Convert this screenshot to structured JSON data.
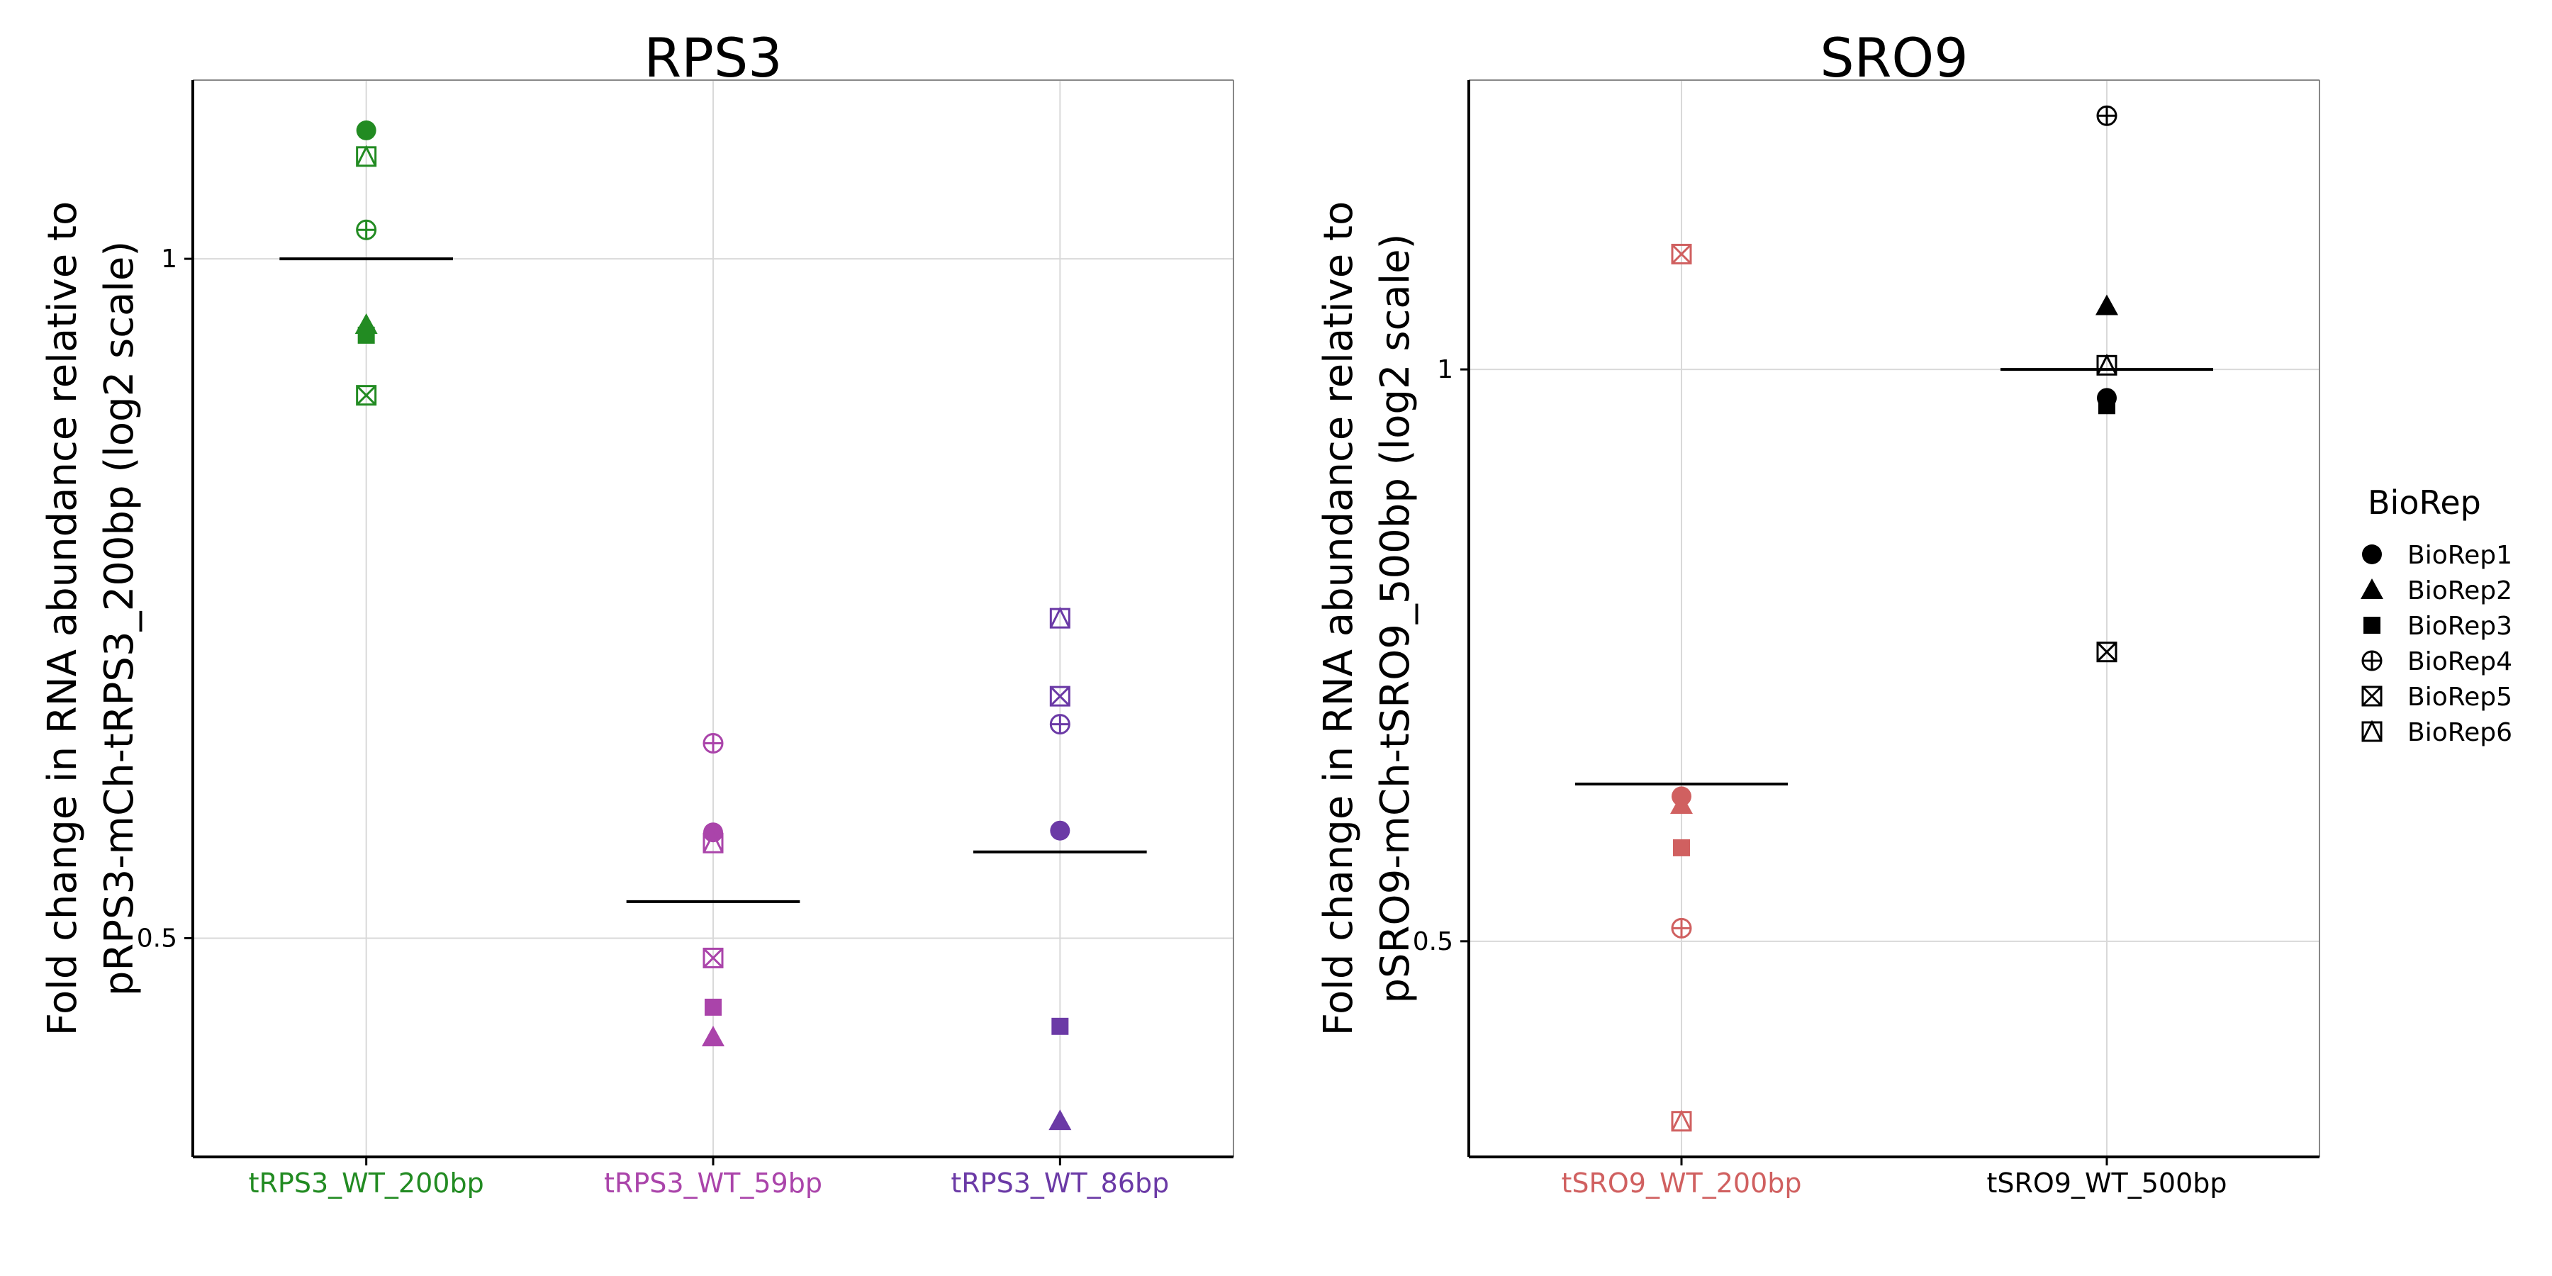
{
  "chart_data": [
    {
      "type": "scatter",
      "title": "RPS3",
      "xlabel": "",
      "ylabel_lines": [
        "Fold change in RNA abundance relative to",
        "pRPS3-mCh-tRPS3_200bp (log2 scale)"
      ],
      "y_scale": "log2",
      "ylim": [
        0.4,
        1.2
      ],
      "y_ticks": [
        {
          "value": 0.5,
          "label": "0.5"
        },
        {
          "value": 1,
          "label": "1"
        }
      ],
      "grid": true,
      "categories": [
        {
          "name": "tRPS3_WT_200bp",
          "color": "#228B22"
        },
        {
          "name": "tRPS3_WT_59bp",
          "color": "#AA44AA"
        },
        {
          "name": "tRPS3_WT_86bp",
          "color": "#6B3AA6"
        }
      ],
      "points": [
        {
          "category": "tRPS3_WT_200bp",
          "biorep": "BioRep1",
          "y": 1.14
        },
        {
          "category": "tRPS3_WT_200bp",
          "biorep": "BioRep2",
          "y": 0.935
        },
        {
          "category": "tRPS3_WT_200bp",
          "biorep": "BioRep3",
          "y": 0.925
        },
        {
          "category": "tRPS3_WT_200bp",
          "biorep": "BioRep4",
          "y": 1.03
        },
        {
          "category": "tRPS3_WT_200bp",
          "biorep": "BioRep5",
          "y": 0.87
        },
        {
          "category": "tRPS3_WT_200bp",
          "biorep": "BioRep6",
          "y": 1.11
        },
        {
          "category": "tRPS3_WT_59bp",
          "biorep": "BioRep1",
          "y": 0.557
        },
        {
          "category": "tRPS3_WT_59bp",
          "biorep": "BioRep2",
          "y": 0.452
        },
        {
          "category": "tRPS3_WT_59bp",
          "biorep": "BioRep3",
          "y": 0.466
        },
        {
          "category": "tRPS3_WT_59bp",
          "biorep": "BioRep4",
          "y": 0.61
        },
        {
          "category": "tRPS3_WT_59bp",
          "biorep": "BioRep5",
          "y": 0.49
        },
        {
          "category": "tRPS3_WT_59bp",
          "biorep": "BioRep6",
          "y": 0.551
        },
        {
          "category": "tRPS3_WT_86bp",
          "biorep": "BioRep1",
          "y": 0.558
        },
        {
          "category": "tRPS3_WT_86bp",
          "biorep": "BioRep2",
          "y": 0.415
        },
        {
          "category": "tRPS3_WT_86bp",
          "biorep": "BioRep3",
          "y": 0.457
        },
        {
          "category": "tRPS3_WT_86bp",
          "biorep": "BioRep4",
          "y": 0.622
        },
        {
          "category": "tRPS3_WT_86bp",
          "biorep": "BioRep5",
          "y": 0.64
        },
        {
          "category": "tRPS3_WT_86bp",
          "biorep": "BioRep6",
          "y": 0.693
        }
      ],
      "means": [
        {
          "category": "tRPS3_WT_200bp",
          "y": 1.0
        },
        {
          "category": "tRPS3_WT_59bp",
          "y": 0.519
        },
        {
          "category": "tRPS3_WT_86bp",
          "y": 0.546
        }
      ]
    },
    {
      "type": "scatter",
      "title": "SRO9",
      "xlabel": "",
      "ylabel_lines": [
        "Fold change in RNA abundance relative to",
        "pSRO9-mCh-tSRO9_500bp (log2 scale)"
      ],
      "y_scale": "log2",
      "ylim": [
        0.385,
        1.42
      ],
      "y_ticks": [
        {
          "value": 0.5,
          "label": "0.5"
        },
        {
          "value": 1,
          "label": "1"
        }
      ],
      "grid": true,
      "categories": [
        {
          "name": "tSRO9_WT_200bp",
          "color": "#D06060"
        },
        {
          "name": "tSRO9_WT_500bp",
          "color": "#000000"
        }
      ],
      "points": [
        {
          "category": "tSRO9_WT_200bp",
          "biorep": "BioRep1",
          "y": 0.596
        },
        {
          "category": "tSRO9_WT_200bp",
          "biorep": "BioRep2",
          "y": 0.59
        },
        {
          "category": "tSRO9_WT_200bp",
          "biorep": "BioRep3",
          "y": 0.56
        },
        {
          "category": "tSRO9_WT_200bp",
          "biorep": "BioRep4",
          "y": 0.508
        },
        {
          "category": "tSRO9_WT_200bp",
          "biorep": "BioRep5",
          "y": 1.15
        },
        {
          "category": "tSRO9_WT_200bp",
          "biorep": "BioRep6",
          "y": 0.402
        },
        {
          "category": "tSRO9_WT_500bp",
          "biorep": "BioRep1",
          "y": 0.966
        },
        {
          "category": "tSRO9_WT_500bp",
          "biorep": "BioRep2",
          "y": 1.08
        },
        {
          "category": "tSRO9_WT_500bp",
          "biorep": "BioRep3",
          "y": 0.957
        },
        {
          "category": "tSRO9_WT_500bp",
          "biorep": "BioRep4",
          "y": 1.36
        },
        {
          "category": "tSRO9_WT_500bp",
          "biorep": "BioRep5",
          "y": 0.71
        },
        {
          "category": "tSRO9_WT_500bp",
          "biorep": "BioRep6",
          "y": 1.005
        }
      ],
      "means": [
        {
          "category": "tSRO9_WT_200bp",
          "y": 0.605
        },
        {
          "category": "tSRO9_WT_500bp",
          "y": 1.0
        }
      ]
    }
  ],
  "legend": {
    "title": "BioRep",
    "placement": "right",
    "items": [
      {
        "label": "BioRep1",
        "shape": "circle-filled"
      },
      {
        "label": "BioRep2",
        "shape": "triangle-filled"
      },
      {
        "label": "BioRep3",
        "shape": "square-filled"
      },
      {
        "label": "BioRep4",
        "shape": "circle-plus"
      },
      {
        "label": "BioRep5",
        "shape": "square-x"
      },
      {
        "label": "BioRep6",
        "shape": "square-triangle"
      }
    ]
  }
}
